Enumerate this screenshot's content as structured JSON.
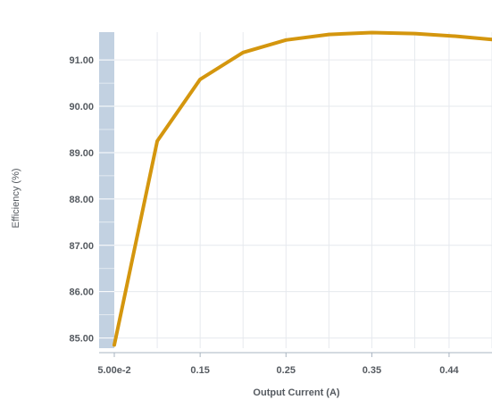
{
  "chart_data": {
    "type": "line",
    "title": "",
    "xlabel": "Output Current (A)",
    "ylabel": "Efficiency (%)",
    "x_tick_labels": [
      "5.00e-2",
      "0.15",
      "0.25",
      "0.35",
      "0.44"
    ],
    "x_tick_values": [
      0.05,
      0.15,
      0.25,
      0.35,
      0.44
    ],
    "y_tick_labels": [
      "85.00",
      "86.00",
      "87.00",
      "88.00",
      "89.00",
      "90.00",
      "91.00"
    ],
    "y_tick_values": [
      85,
      86,
      87,
      88,
      89,
      90,
      91
    ],
    "xlim": [
      0.05,
      0.49
    ],
    "ylim": [
      84.78,
      91.6
    ],
    "grid": true,
    "series": [
      {
        "color": "#d4960e",
        "x": [
          0.05,
          0.1,
          0.15,
          0.2,
          0.25,
          0.3,
          0.35,
          0.4,
          0.45,
          0.49
        ],
        "y": [
          84.85,
          89.25,
          90.58,
          91.16,
          91.43,
          91.55,
          91.59,
          91.57,
          91.51,
          91.44
        ]
      }
    ],
    "colors": {
      "line": "#d4960e",
      "axis_band": "#c2d1e1",
      "grid": "#e6e9ee",
      "axis_line": "#a8b4c0"
    }
  }
}
